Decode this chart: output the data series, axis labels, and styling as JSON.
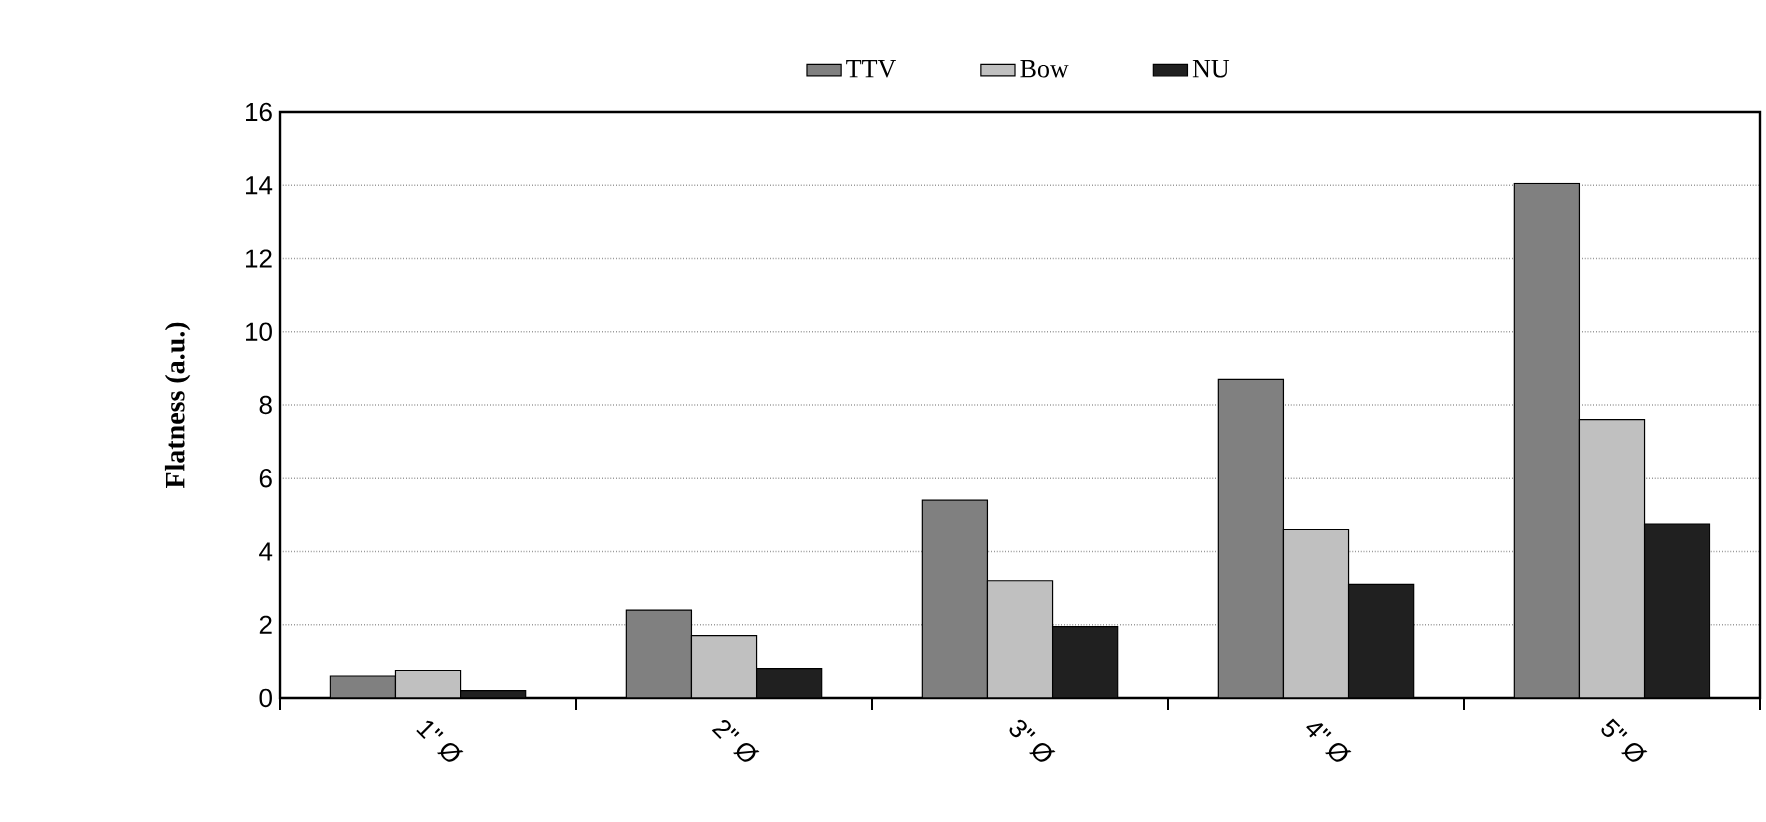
{
  "chart_data": {
    "type": "bar",
    "ylabel": "Flatness (a.u.)",
    "categories": [
      "1\" Ø",
      "2\" Ø",
      "3\" Ø",
      "4\" Ø",
      "5\" Ø"
    ],
    "series": [
      {
        "name": "TTV",
        "color": "#808080",
        "values": [
          0.6,
          2.4,
          5.4,
          8.7,
          14.05
        ]
      },
      {
        "name": "Bow",
        "color": "#c0c0c0",
        "values": [
          0.75,
          1.7,
          3.2,
          4.6,
          7.6
        ]
      },
      {
        "name": "NU",
        "color": "#202020",
        "values": [
          0.2,
          0.8,
          1.95,
          3.1,
          4.75
        ]
      }
    ],
    "ylim": [
      0,
      16
    ],
    "yticks": [
      0,
      2,
      4,
      6,
      8,
      10,
      12,
      14,
      16
    ],
    "grid": "y",
    "legend": "top"
  }
}
